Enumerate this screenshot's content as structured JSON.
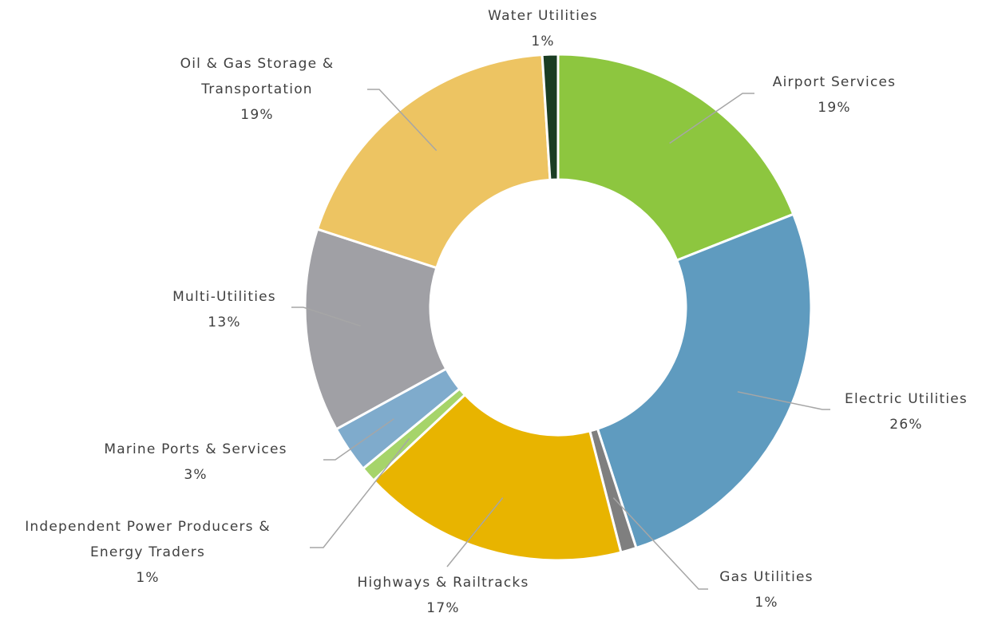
{
  "chart_data": {
    "type": "donut",
    "categories": [
      "Airport Services",
      "Electric Utilities",
      "Gas Utilities",
      "Highways & Railtracks",
      "Independent Power Producers & Energy Traders",
      "Marine Ports & Services",
      "Multi-Utilities",
      "Oil & Gas Storage & Transportation",
      "Water Utilities"
    ],
    "values": [
      19,
      26,
      1,
      17,
      1,
      3,
      13,
      19,
      1
    ],
    "value_labels": [
      "19%",
      "26%",
      "1%",
      "17%",
      "1%",
      "3%",
      "13%",
      "19%",
      "1%"
    ],
    "colors": [
      "#8dc63f",
      "#5f9bbf",
      "#7f7f7f",
      "#e8b400",
      "#a6d46a",
      "#7fabcc",
      "#a0a0a5",
      "#edc462",
      "#1a3d23"
    ]
  }
}
